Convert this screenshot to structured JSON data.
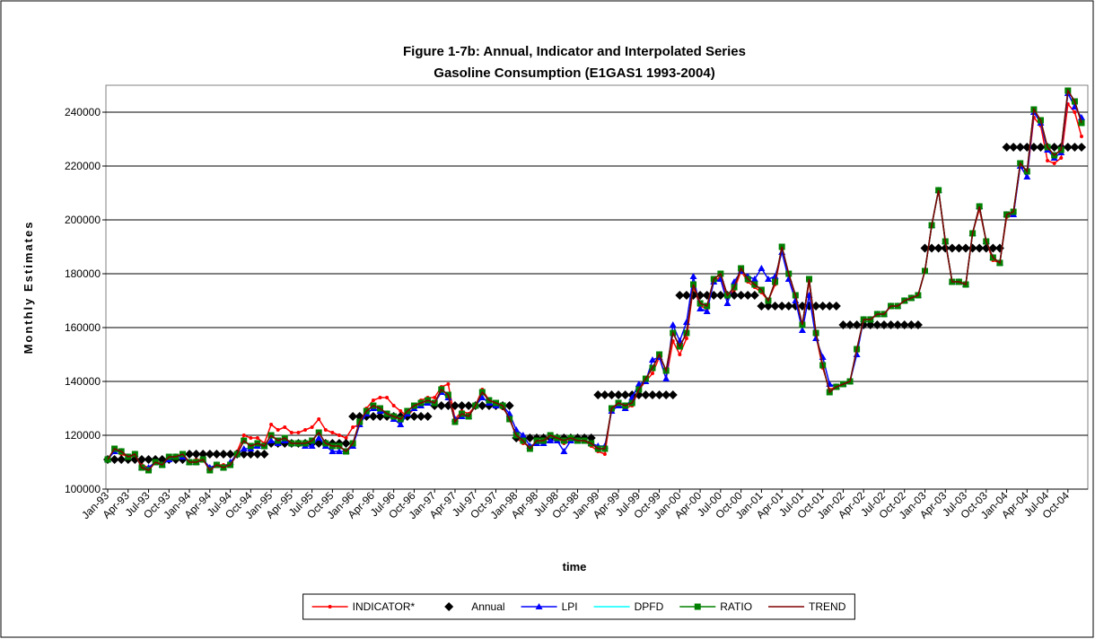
{
  "chart_data": {
    "type": "line",
    "title": "Figure 1-7b: Annual, Indicator and Interpolated Series",
    "subtitle": "Gasoline Consumption (E1GAS1 1993-2004)",
    "x_label": "time",
    "y_label": "Monthly Estimates",
    "ylim": [
      100000,
      250000
    ],
    "yticks": [
      100000,
      120000,
      140000,
      160000,
      180000,
      200000,
      220000,
      240000
    ],
    "grid": true,
    "legend": "bottom",
    "categories": [
      "Jan-93",
      null,
      null,
      "Apr-93",
      null,
      null,
      "Jul-93",
      null,
      null,
      "Oct-93",
      null,
      null,
      "Jan-94",
      null,
      null,
      "Apr-94",
      null,
      null,
      "Jul-94",
      null,
      null,
      "Oct-94",
      null,
      null,
      "Jan-95",
      null,
      null,
      "Apr-95",
      null,
      null,
      "Jul-95",
      null,
      null,
      "Oct-95",
      null,
      null,
      "Jan-96",
      null,
      null,
      "Apr-96",
      null,
      null,
      "Jul-96",
      null,
      null,
      "Oct-96",
      null,
      null,
      "Jan-97",
      null,
      null,
      "Apr-97",
      null,
      null,
      "Jul-97",
      null,
      null,
      "Oct-97",
      null,
      null,
      "Jan-98",
      null,
      null,
      "Apr-98",
      null,
      null,
      "Jul-98",
      null,
      null,
      "Oct-98",
      null,
      null,
      "Jan-99",
      null,
      null,
      "Apr-99",
      null,
      null,
      "Jul-99",
      null,
      null,
      "Oct-99",
      null,
      null,
      "Jan-00",
      null,
      null,
      "Apr-00",
      null,
      null,
      "Jul-00",
      null,
      null,
      "Oct-00",
      null,
      null,
      "Jan-01",
      null,
      null,
      "Apr-01",
      null,
      null,
      "Jul-01",
      null,
      null,
      "Oct-01",
      null,
      null,
      "Jan-02",
      null,
      null,
      "Apr-02",
      null,
      null,
      "Jul-02",
      null,
      null,
      "Oct-02",
      null,
      null,
      "Jan-03",
      null,
      null,
      "Apr-03",
      null,
      null,
      "Jul-03",
      null,
      null,
      "Oct-03",
      null,
      null,
      "Jan-04",
      null,
      null,
      "Apr-04",
      null,
      null,
      "Jul-04",
      null,
      null,
      "Oct-04",
      null,
      null
    ],
    "series": [
      {
        "name": "INDICATOR*",
        "color": "#ff0000",
        "marker": "circle",
        "line": true,
        "values": [
          111000,
          115000,
          113000,
          112000,
          112000,
          109000,
          108000,
          110000,
          110000,
          111000,
          112000,
          113000,
          110000,
          111000,
          111000,
          108000,
          109000,
          109000,
          109000,
          114000,
          120000,
          119000,
          119000,
          117000,
          124000,
          122000,
          123000,
          121000,
          121000,
          122000,
          123000,
          126000,
          122000,
          121000,
          120000,
          119000,
          123000,
          124000,
          130000,
          133000,
          134000,
          134000,
          131000,
          129000,
          127000,
          130000,
          133000,
          134000,
          134000,
          138000,
          139000,
          126000,
          129000,
          128000,
          131000,
          137000,
          133000,
          132000,
          130000,
          127000,
          119000,
          117000,
          116000,
          117000,
          118000,
          119000,
          119000,
          117000,
          118000,
          118000,
          118000,
          116000,
          114000,
          113000,
          130000,
          131000,
          130000,
          131000,
          137000,
          140000,
          143000,
          149000,
          141000,
          155000,
          150000,
          156000,
          175000,
          168000,
          167000,
          177000,
          179000,
          171000,
          174000,
          181000,
          177000,
          175000,
          173000,
          170000,
          176000,
          189000,
          180000,
          171000,
          161000,
          177000,
          157000,
          145000,
          137000,
          138000,
          139000,
          140000,
          151000,
          163000,
          163000,
          165000,
          165000,
          168000,
          168000,
          170000,
          171000,
          172000,
          181000,
          198000,
          211000,
          192000,
          177000,
          177000,
          176000,
          195000,
          204000,
          192000,
          185000,
          184000,
          201000,
          202000,
          220000,
          216000,
          238000,
          235000,
          222000,
          221000,
          223000,
          243000,
          240000,
          231000
        ]
      },
      {
        "name": "Annual",
        "color": "#000000",
        "marker": "diamond",
        "line": false,
        "values": [
          111000,
          111000,
          111000,
          111000,
          111000,
          111000,
          111000,
          111000,
          111000,
          111000,
          111000,
          111000,
          113000,
          113000,
          113000,
          113000,
          113000,
          113000,
          113000,
          113000,
          113000,
          113000,
          113000,
          113000,
          117000,
          117000,
          117000,
          117000,
          117000,
          117000,
          117000,
          117000,
          117000,
          117000,
          117000,
          117000,
          127000,
          127000,
          127000,
          127000,
          127000,
          127000,
          127000,
          127000,
          127000,
          127000,
          127000,
          127000,
          131000,
          131000,
          131000,
          131000,
          131000,
          131000,
          131000,
          131000,
          131000,
          131000,
          131000,
          131000,
          119000,
          119000,
          119000,
          119000,
          119000,
          119000,
          119000,
          119000,
          119000,
          119000,
          119000,
          119000,
          135000,
          135000,
          135000,
          135000,
          135000,
          135000,
          135000,
          135000,
          135000,
          135000,
          135000,
          135000,
          172000,
          172000,
          172000,
          172000,
          172000,
          172000,
          172000,
          172000,
          172000,
          172000,
          172000,
          172000,
          168000,
          168000,
          168000,
          168000,
          168000,
          168000,
          168000,
          168000,
          168000,
          168000,
          168000,
          168000,
          161000,
          161000,
          161000,
          161000,
          161000,
          161000,
          161000,
          161000,
          161000,
          161000,
          161000,
          161000,
          189500,
          189500,
          189500,
          189500,
          189500,
          189500,
          189500,
          189500,
          189500,
          189500,
          189500,
          189500,
          227000,
          227000,
          227000,
          227000,
          227000,
          227000,
          227000,
          227000,
          227000,
          227000,
          227000,
          227000
        ]
      },
      {
        "name": "LPI",
        "color": "#0000ff",
        "marker": "triangle",
        "line": true,
        "values": [
          111000,
          114000,
          114000,
          112000,
          113000,
          108000,
          108000,
          110000,
          109000,
          111000,
          112000,
          112000,
          110000,
          110000,
          111000,
          108000,
          109000,
          108000,
          110000,
          113000,
          115000,
          115000,
          116000,
          116000,
          118000,
          117000,
          118000,
          117000,
          117000,
          116000,
          116000,
          119000,
          116000,
          114000,
          114000,
          114000,
          116000,
          124000,
          128000,
          130000,
          129000,
          128000,
          126000,
          124000,
          128000,
          130000,
          131000,
          132000,
          132000,
          136000,
          134000,
          126000,
          127000,
          127000,
          131000,
          134000,
          132000,
          131000,
          131000,
          128000,
          122000,
          120000,
          116000,
          117000,
          117000,
          118000,
          118000,
          114000,
          118000,
          118000,
          118000,
          117000,
          116000,
          116000,
          129000,
          131000,
          130000,
          134000,
          139000,
          140000,
          148000,
          149000,
          141000,
          161000,
          155000,
          162000,
          179000,
          167000,
          166000,
          177000,
          178000,
          169000,
          177000,
          181000,
          179000,
          178000,
          182000,
          178000,
          179000,
          188000,
          178000,
          170000,
          159000,
          172000,
          156000,
          149000,
          139000,
          138000,
          139000,
          140000,
          150000,
          163000,
          163000,
          165000,
          165000,
          168000,
          168000,
          170000,
          171000,
          172000,
          181000,
          198000,
          211000,
          192000,
          177000,
          177000,
          176000,
          195000,
          205000,
          192000,
          186000,
          184000,
          202000,
          202000,
          220000,
          216000,
          240000,
          236000,
          226000,
          223000,
          225000,
          247000,
          242000,
          238000
        ]
      },
      {
        "name": "DPFD",
        "color": "#00ffff",
        "marker": "none",
        "line": true,
        "values": [
          111000,
          115000,
          114000,
          112000,
          113000,
          108000,
          107000,
          110000,
          109000,
          112000,
          112000,
          113000,
          110000,
          110000,
          111000,
          107000,
          109000,
          108000,
          109000,
          113000,
          118000,
          116000,
          117000,
          116000,
          120000,
          118000,
          119000,
          117000,
          117000,
          117000,
          118000,
          121000,
          117000,
          116000,
          116000,
          114000,
          117000,
          125000,
          129000,
          131000,
          130000,
          128000,
          127000,
          126000,
          129000,
          131000,
          132000,
          133000,
          132000,
          137000,
          135000,
          125000,
          128000,
          127000,
          131000,
          136000,
          133000,
          132000,
          131000,
          126000,
          120000,
          118000,
          115000,
          118000,
          118000,
          120000,
          119000,
          118000,
          119000,
          118000,
          118000,
          117000,
          115000,
          115000,
          130000,
          132000,
          131000,
          132000,
          137000,
          141000,
          145000,
          150000,
          144000,
          158000,
          153000,
          158000,
          176000,
          169000,
          168000,
          178000,
          180000,
          172000,
          175000,
          182000,
          178000,
          176000,
          174000,
          170000,
          177000,
          190000,
          180000,
          172000,
          161000,
          178000,
          158000,
          146000,
          136000,
          138000,
          139000,
          140000,
          152000,
          163000,
          163000,
          165000,
          165000,
          168000,
          168000,
          170000,
          171000,
          172000,
          181000,
          198000,
          211000,
          192000,
          177000,
          177000,
          176000,
          195000,
          205000,
          192000,
          186000,
          184000,
          202000,
          203000,
          221000,
          218000,
          241000,
          237000,
          227000,
          224000,
          226000,
          248000,
          244000,
          236000
        ]
      },
      {
        "name": "RATIO",
        "color": "#008000",
        "marker": "square",
        "line": true,
        "values": [
          111000,
          115000,
          114000,
          112000,
          113000,
          108000,
          107000,
          110000,
          109000,
          112000,
          112000,
          113000,
          110000,
          110000,
          111000,
          107000,
          109000,
          108000,
          109000,
          113000,
          118000,
          116000,
          117000,
          116000,
          120000,
          118000,
          119000,
          117000,
          117000,
          117000,
          118000,
          121000,
          117000,
          116000,
          116000,
          114000,
          117000,
          125000,
          129000,
          131000,
          130000,
          128000,
          127000,
          126000,
          129000,
          131000,
          132000,
          133000,
          132000,
          137000,
          135000,
          125000,
          128000,
          127000,
          131000,
          136000,
          133000,
          132000,
          131000,
          126000,
          120000,
          118000,
          115000,
          118000,
          118000,
          120000,
          119000,
          118000,
          119000,
          118000,
          118000,
          117000,
          115000,
          115000,
          130000,
          132000,
          131000,
          132000,
          137000,
          141000,
          145000,
          150000,
          144000,
          158000,
          153000,
          158000,
          176000,
          169000,
          168000,
          178000,
          180000,
          172000,
          175000,
          182000,
          178000,
          176000,
          174000,
          170000,
          177000,
          190000,
          180000,
          172000,
          161000,
          178000,
          158000,
          146000,
          136000,
          138000,
          139000,
          140000,
          152000,
          163000,
          163000,
          165000,
          165000,
          168000,
          168000,
          170000,
          171000,
          172000,
          181000,
          198000,
          211000,
          192000,
          177000,
          177000,
          176000,
          195000,
          205000,
          192000,
          186000,
          184000,
          202000,
          203000,
          221000,
          218000,
          241000,
          237000,
          227000,
          224000,
          226000,
          248000,
          244000,
          236000
        ]
      },
      {
        "name": "TREND",
        "color": "#800000",
        "marker": "none",
        "line": true,
        "values": [
          111000,
          115000,
          114000,
          112000,
          113000,
          108000,
          107000,
          110000,
          109000,
          112000,
          112000,
          113000,
          110000,
          110000,
          111000,
          107000,
          109000,
          108000,
          109000,
          113000,
          118000,
          116000,
          117000,
          116000,
          120000,
          118000,
          119000,
          117000,
          117000,
          117000,
          118000,
          121000,
          117000,
          116000,
          116000,
          114000,
          117000,
          125000,
          129000,
          131000,
          130000,
          128000,
          127000,
          126000,
          129000,
          131000,
          132000,
          133000,
          132000,
          137000,
          135000,
          125000,
          128000,
          127000,
          131000,
          136000,
          133000,
          132000,
          131000,
          126000,
          120000,
          118000,
          115000,
          118000,
          118000,
          120000,
          119000,
          118000,
          119000,
          118000,
          118000,
          117000,
          115000,
          115000,
          130000,
          132000,
          131000,
          132000,
          137000,
          141000,
          145000,
          150000,
          144000,
          158000,
          153000,
          158000,
          176000,
          169000,
          168000,
          178000,
          180000,
          172000,
          175000,
          182000,
          178000,
          176000,
          174000,
          170000,
          177000,
          190000,
          180000,
          172000,
          161000,
          178000,
          158000,
          146000,
          136000,
          138000,
          139000,
          140000,
          152000,
          163000,
          163000,
          165000,
          165000,
          168000,
          168000,
          170000,
          171000,
          172000,
          181000,
          198000,
          211000,
          192000,
          177000,
          177000,
          176000,
          195000,
          205000,
          192000,
          186000,
          184000,
          202000,
          203000,
          221000,
          218000,
          241000,
          237000,
          227000,
          224000,
          226000,
          248000,
          244000,
          236000
        ]
      }
    ]
  }
}
